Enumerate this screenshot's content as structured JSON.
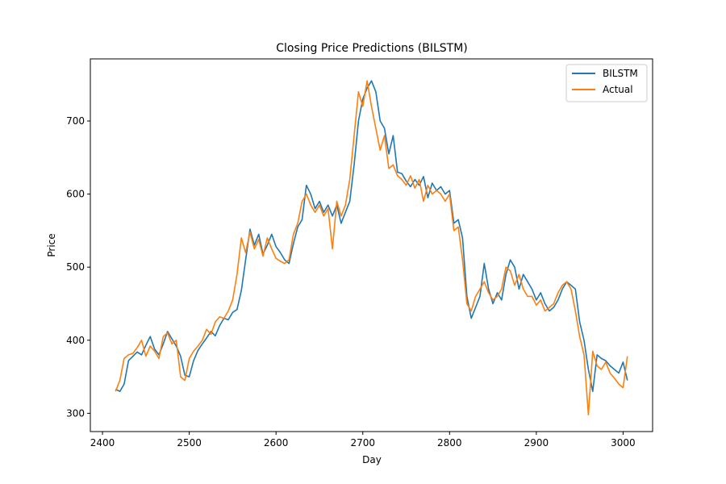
{
  "chart_data": {
    "type": "line",
    "title": "Closing Price Predictions (BILSTM)",
    "xlabel": "Day",
    "ylabel": "Price",
    "xlim": [
      2386,
      3034
    ],
    "ylim": [
      275,
      785
    ],
    "xticks": [
      2400,
      2500,
      2600,
      2700,
      2800,
      2900,
      3000
    ],
    "yticks": [
      300,
      400,
      500,
      600,
      700
    ],
    "legend_position": "top-right",
    "grid": false,
    "series": [
      {
        "name": "BILSTM",
        "color": "#1f77b4",
        "x": [
          2415,
          2420,
          2425,
          2430,
          2435,
          2440,
          2445,
          2450,
          2455,
          2460,
          2465,
          2470,
          2475,
          2480,
          2485,
          2490,
          2495,
          2500,
          2505,
          2510,
          2515,
          2520,
          2525,
          2530,
          2535,
          2540,
          2545,
          2550,
          2555,
          2560,
          2565,
          2570,
          2575,
          2580,
          2585,
          2590,
          2595,
          2600,
          2605,
          2610,
          2615,
          2620,
          2625,
          2630,
          2635,
          2640,
          2645,
          2650,
          2655,
          2660,
          2665,
          2670,
          2675,
          2680,
          2685,
          2690,
          2695,
          2700,
          2705,
          2710,
          2715,
          2720,
          2725,
          2730,
          2735,
          2740,
          2745,
          2750,
          2755,
          2760,
          2765,
          2770,
          2775,
          2780,
          2785,
          2790,
          2795,
          2800,
          2805,
          2810,
          2815,
          2820,
          2825,
          2830,
          2835,
          2840,
          2845,
          2850,
          2855,
          2860,
          2865,
          2870,
          2875,
          2880,
          2885,
          2890,
          2895,
          2900,
          2905,
          2910,
          2915,
          2920,
          2925,
          2930,
          2935,
          2940,
          2945,
          2950,
          2955,
          2960,
          2965,
          2970,
          2975,
          2980,
          2985,
          2990,
          2995,
          3000,
          3005
        ],
        "y": [
          333,
          330,
          340,
          372,
          378,
          384,
          380,
          393,
          405,
          388,
          380,
          395,
          412,
          402,
          392,
          378,
          352,
          350,
          372,
          386,
          395,
          403,
          412,
          406,
          420,
          430,
          428,
          438,
          442,
          468,
          510,
          552,
          530,
          545,
          518,
          530,
          545,
          528,
          520,
          510,
          505,
          532,
          555,
          565,
          612,
          600,
          580,
          590,
          575,
          585,
          570,
          585,
          560,
          575,
          590,
          640,
          700,
          730,
          745,
          755,
          740,
          700,
          690,
          655,
          680,
          630,
          628,
          618,
          610,
          620,
          612,
          624,
          595,
          615,
          605,
          610,
          600,
          605,
          560,
          565,
          540,
          460,
          430,
          445,
          460,
          505,
          470,
          450,
          465,
          455,
          490,
          510,
          500,
          470,
          490,
          480,
          470,
          455,
          465,
          450,
          440,
          445,
          455,
          470,
          480,
          475,
          470,
          425,
          400,
          360,
          330,
          380,
          375,
          372,
          365,
          360,
          355,
          370,
          345
        ]
      },
      {
        "name": "Actual",
        "color": "#ff7f0e",
        "x": [
          2415,
          2420,
          2425,
          2430,
          2435,
          2440,
          2445,
          2450,
          2455,
          2460,
          2465,
          2470,
          2475,
          2480,
          2485,
          2490,
          2495,
          2500,
          2505,
          2510,
          2515,
          2520,
          2525,
          2530,
          2535,
          2540,
          2545,
          2550,
          2555,
          2560,
          2565,
          2570,
          2575,
          2580,
          2585,
          2590,
          2595,
          2600,
          2605,
          2610,
          2615,
          2620,
          2625,
          2630,
          2635,
          2640,
          2645,
          2650,
          2655,
          2660,
          2665,
          2670,
          2675,
          2680,
          2685,
          2690,
          2695,
          2700,
          2705,
          2710,
          2715,
          2720,
          2725,
          2730,
          2735,
          2740,
          2745,
          2750,
          2755,
          2760,
          2765,
          2770,
          2775,
          2780,
          2785,
          2790,
          2795,
          2800,
          2805,
          2810,
          2815,
          2820,
          2825,
          2830,
          2835,
          2840,
          2845,
          2850,
          2855,
          2860,
          2865,
          2870,
          2875,
          2880,
          2885,
          2890,
          2895,
          2900,
          2905,
          2910,
          2915,
          2920,
          2925,
          2930,
          2935,
          2940,
          2945,
          2950,
          2955,
          2960,
          2965,
          2970,
          2975,
          2980,
          2985,
          2990,
          2995,
          3000,
          3005
        ],
        "y": [
          330,
          345,
          375,
          380,
          382,
          390,
          400,
          378,
          392,
          385,
          375,
          405,
          410,
          395,
          400,
          350,
          345,
          375,
          385,
          392,
          400,
          415,
          408,
          425,
          432,
          430,
          440,
          455,
          490,
          540,
          520,
          548,
          525,
          538,
          515,
          540,
          525,
          512,
          508,
          505,
          510,
          545,
          560,
          590,
          600,
          585,
          575,
          585,
          570,
          580,
          525,
          590,
          570,
          585,
          620,
          680,
          740,
          720,
          755,
          720,
          690,
          660,
          680,
          635,
          640,
          625,
          620,
          612,
          625,
          608,
          620,
          590,
          612,
          600,
          605,
          600,
          590,
          600,
          550,
          555,
          510,
          450,
          440,
          460,
          470,
          480,
          465,
          455,
          460,
          470,
          500,
          495,
          475,
          490,
          470,
          460,
          460,
          448,
          455,
          440,
          445,
          450,
          465,
          475,
          480,
          470,
          440,
          405,
          380,
          298,
          385,
          365,
          360,
          370,
          355,
          348,
          340,
          335,
          378
        ]
      }
    ]
  }
}
